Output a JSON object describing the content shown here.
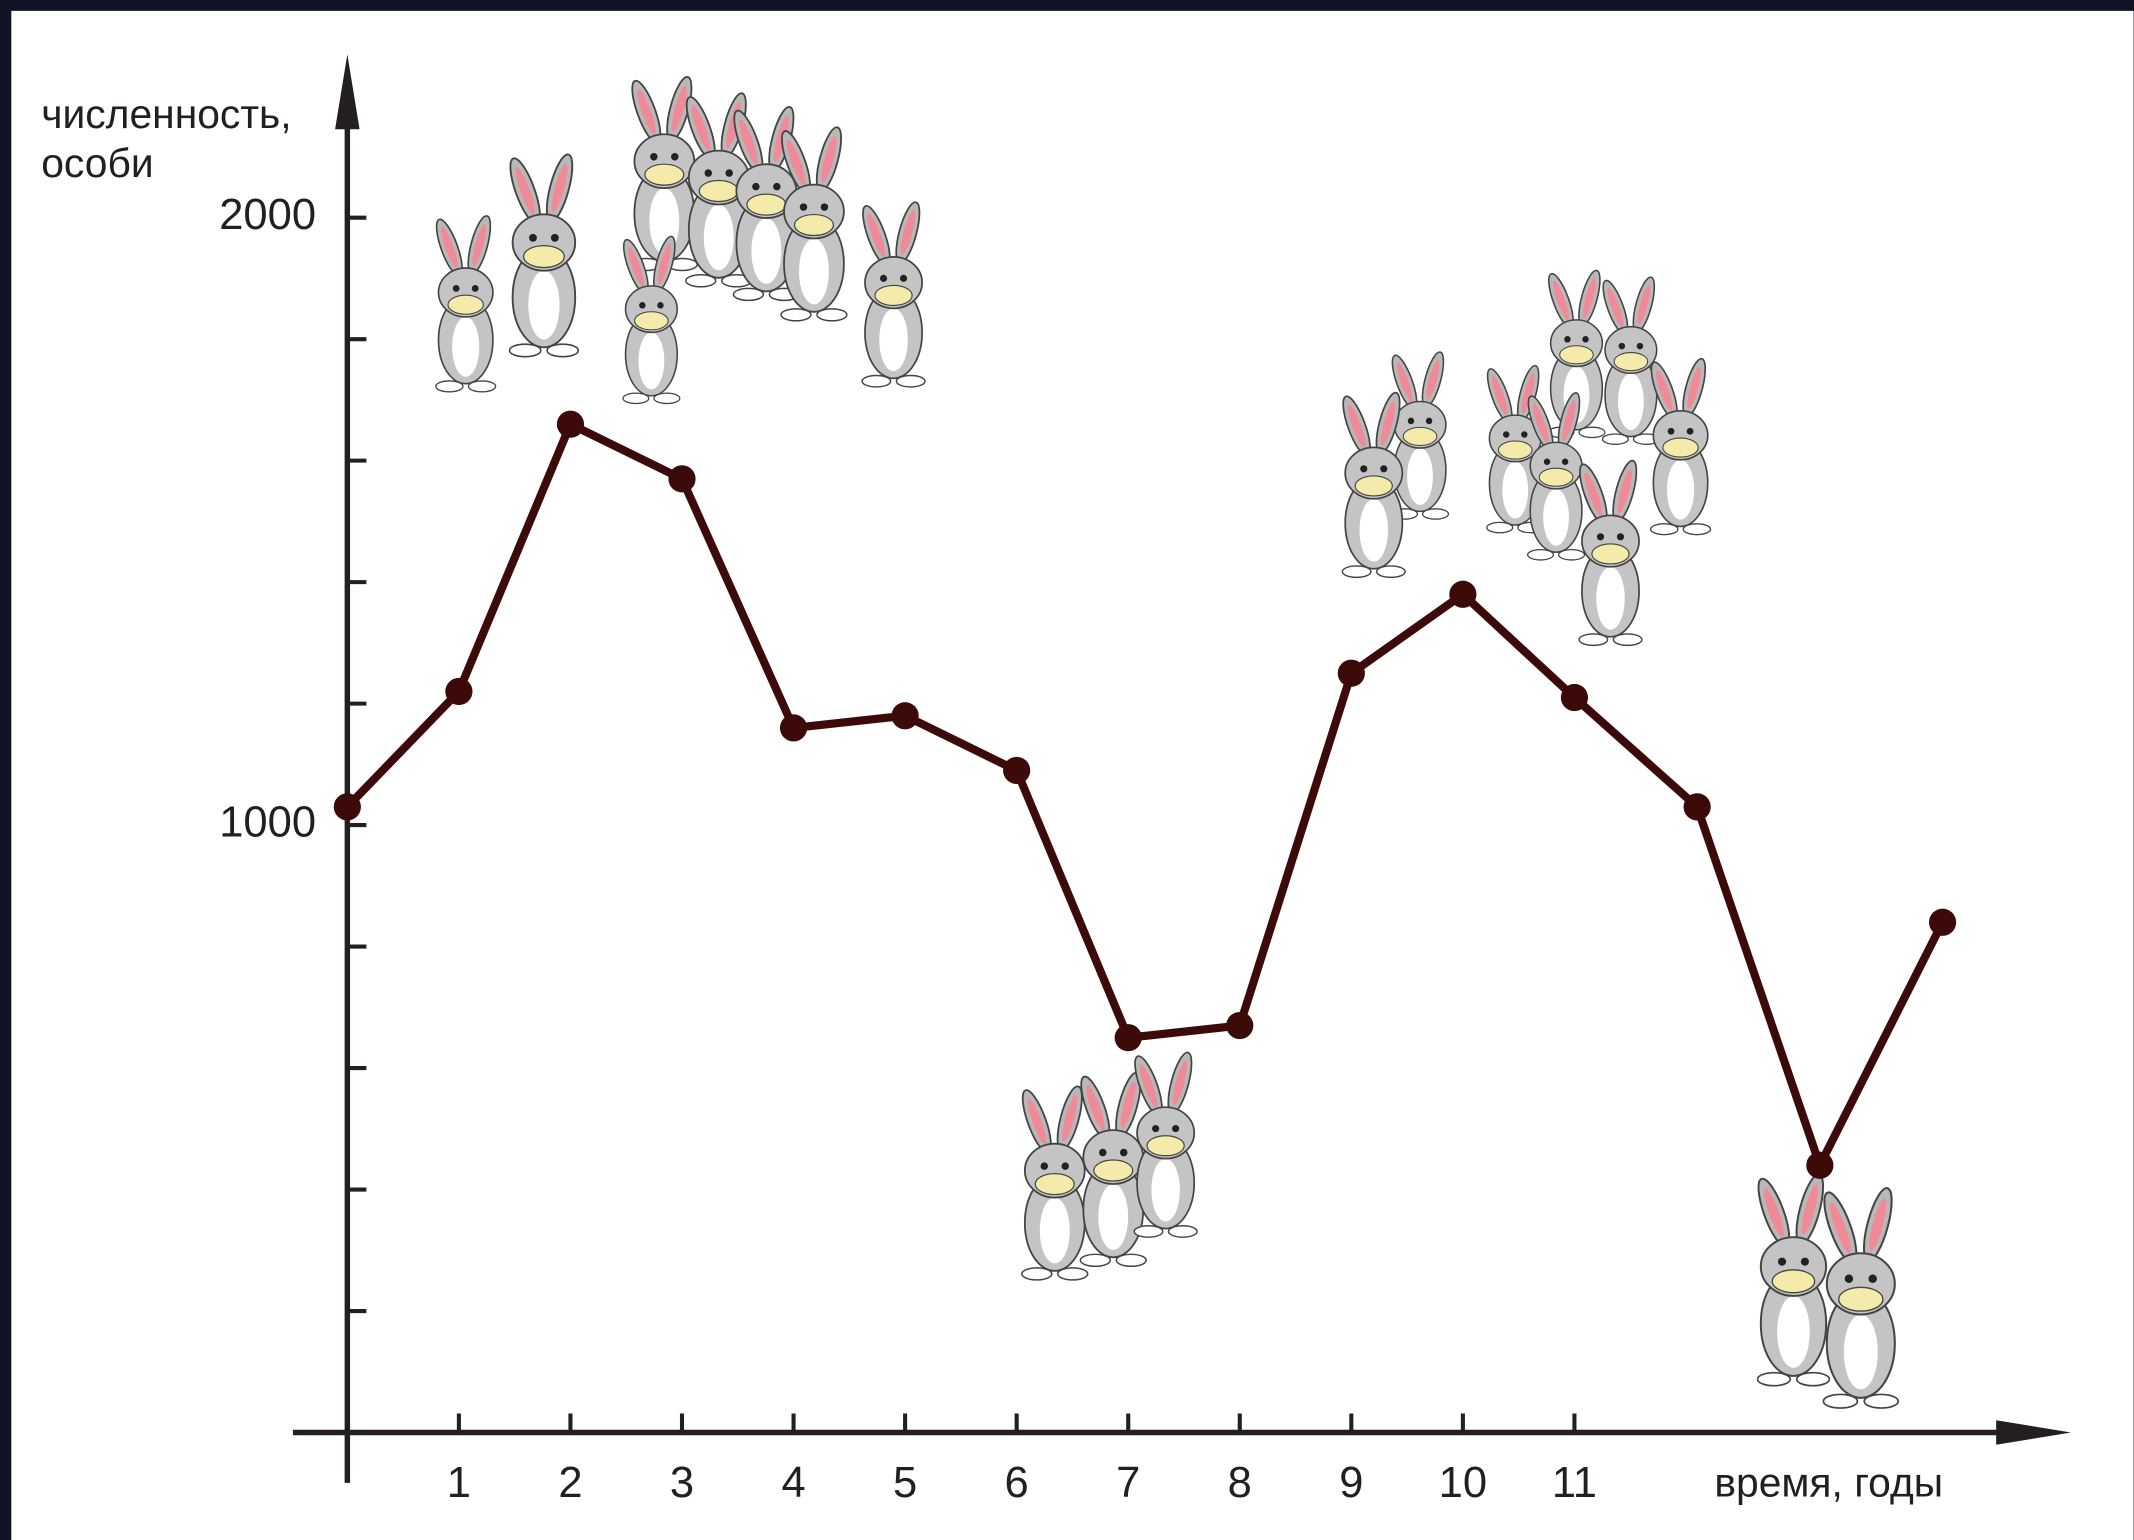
{
  "chart_data": {
    "type": "line",
    "ylabel": [
      "численность,",
      "особи"
    ],
    "xlabel": "время, годы",
    "xlim": [
      -0.5,
      15.4
    ],
    "ylim": [
      -80,
      2250
    ],
    "xticks": [
      1,
      2,
      3,
      4,
      5,
      6,
      7,
      8,
      9,
      10,
      11
    ],
    "yticks": [
      1000,
      2000
    ],
    "yminor_ticks": [
      200,
      400,
      600,
      800,
      1200,
      1400,
      1600,
      1800
    ],
    "series": [
      {
        "color": "#3d0a0a",
        "x": [
          0,
          1,
          2,
          3,
          4,
          5,
          6,
          7,
          8,
          9,
          10,
          11,
          12.1,
          13.2,
          14.3
        ],
        "values": [
          1030,
          1220,
          1660,
          1570,
          1160,
          1180,
          1090,
          650,
          670,
          1250,
          1380,
          1210,
          1030,
          440,
          840
        ]
      }
    ]
  }
}
